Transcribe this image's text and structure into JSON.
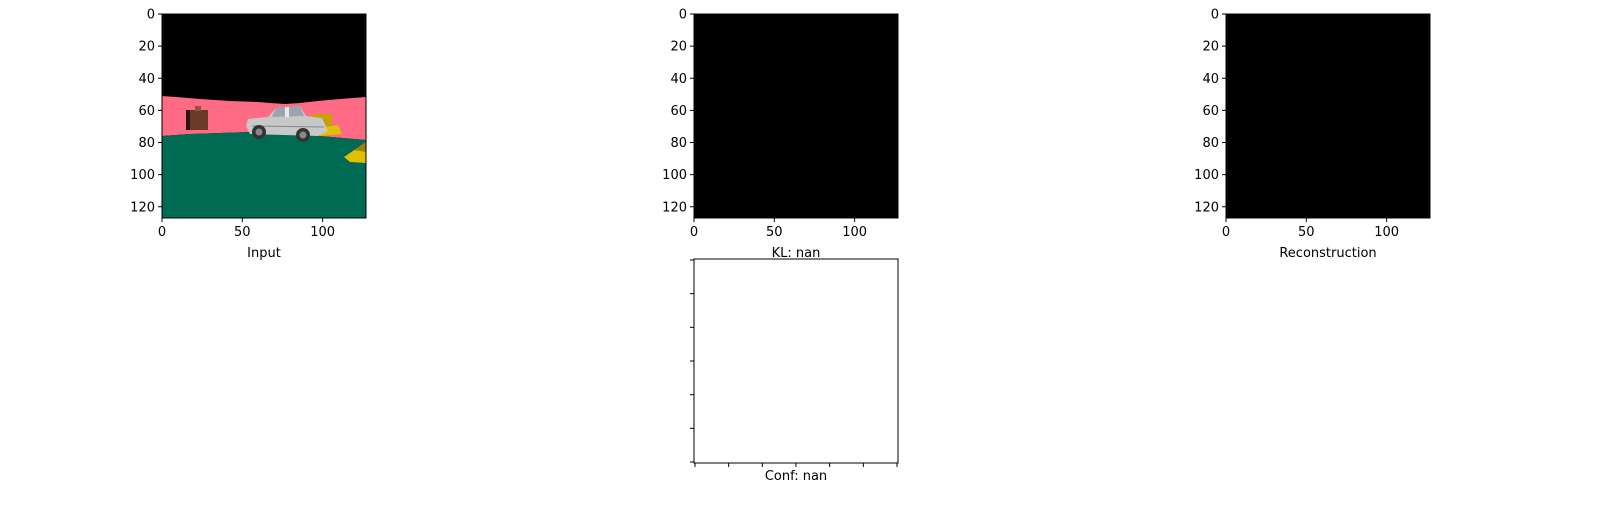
{
  "chart_data": [
    {
      "type": "image",
      "xlabel": "Input",
      "content": "rendered scene: black sky, pink wall band, green ground, grey car, brown box, yellow objects",
      "colors": {
        "sky": "#000000",
        "wall": "#ff6b85",
        "ground": "#006b52",
        "car": "#c8c8c8",
        "box": "#6b3a28",
        "object": "#e0c000"
      },
      "xlim": [
        0,
        127
      ],
      "ylim": [
        127,
        0
      ],
      "xticks": [
        0,
        50,
        100
      ],
      "yticks": [
        0,
        20,
        40,
        60,
        80,
        100,
        120
      ]
    },
    {
      "type": "image",
      "xlabel": "KL: nan",
      "content": "all black",
      "colors": {
        "fill": "#000000"
      },
      "xlim": [
        0,
        127
      ],
      "ylim": [
        127,
        0
      ],
      "xticks": [
        0,
        50,
        100
      ],
      "yticks": [
        0,
        20,
        40,
        60,
        80,
        100,
        120
      ]
    },
    {
      "type": "image",
      "xlabel": "Reconstruction",
      "content": "all black",
      "colors": {
        "fill": "#000000"
      },
      "xlim": [
        0,
        127
      ],
      "ylim": [
        127,
        0
      ],
      "xticks": [
        0,
        50,
        100
      ],
      "yticks": [
        0,
        20,
        40,
        60,
        80,
        100,
        120
      ]
    },
    {
      "type": "image",
      "xlabel": "Conf: nan",
      "content": "blank white panel, unlabeled ticks",
      "colors": {
        "fill": "#ffffff"
      },
      "xtick_count": 7,
      "ytick_count": 7
    }
  ]
}
